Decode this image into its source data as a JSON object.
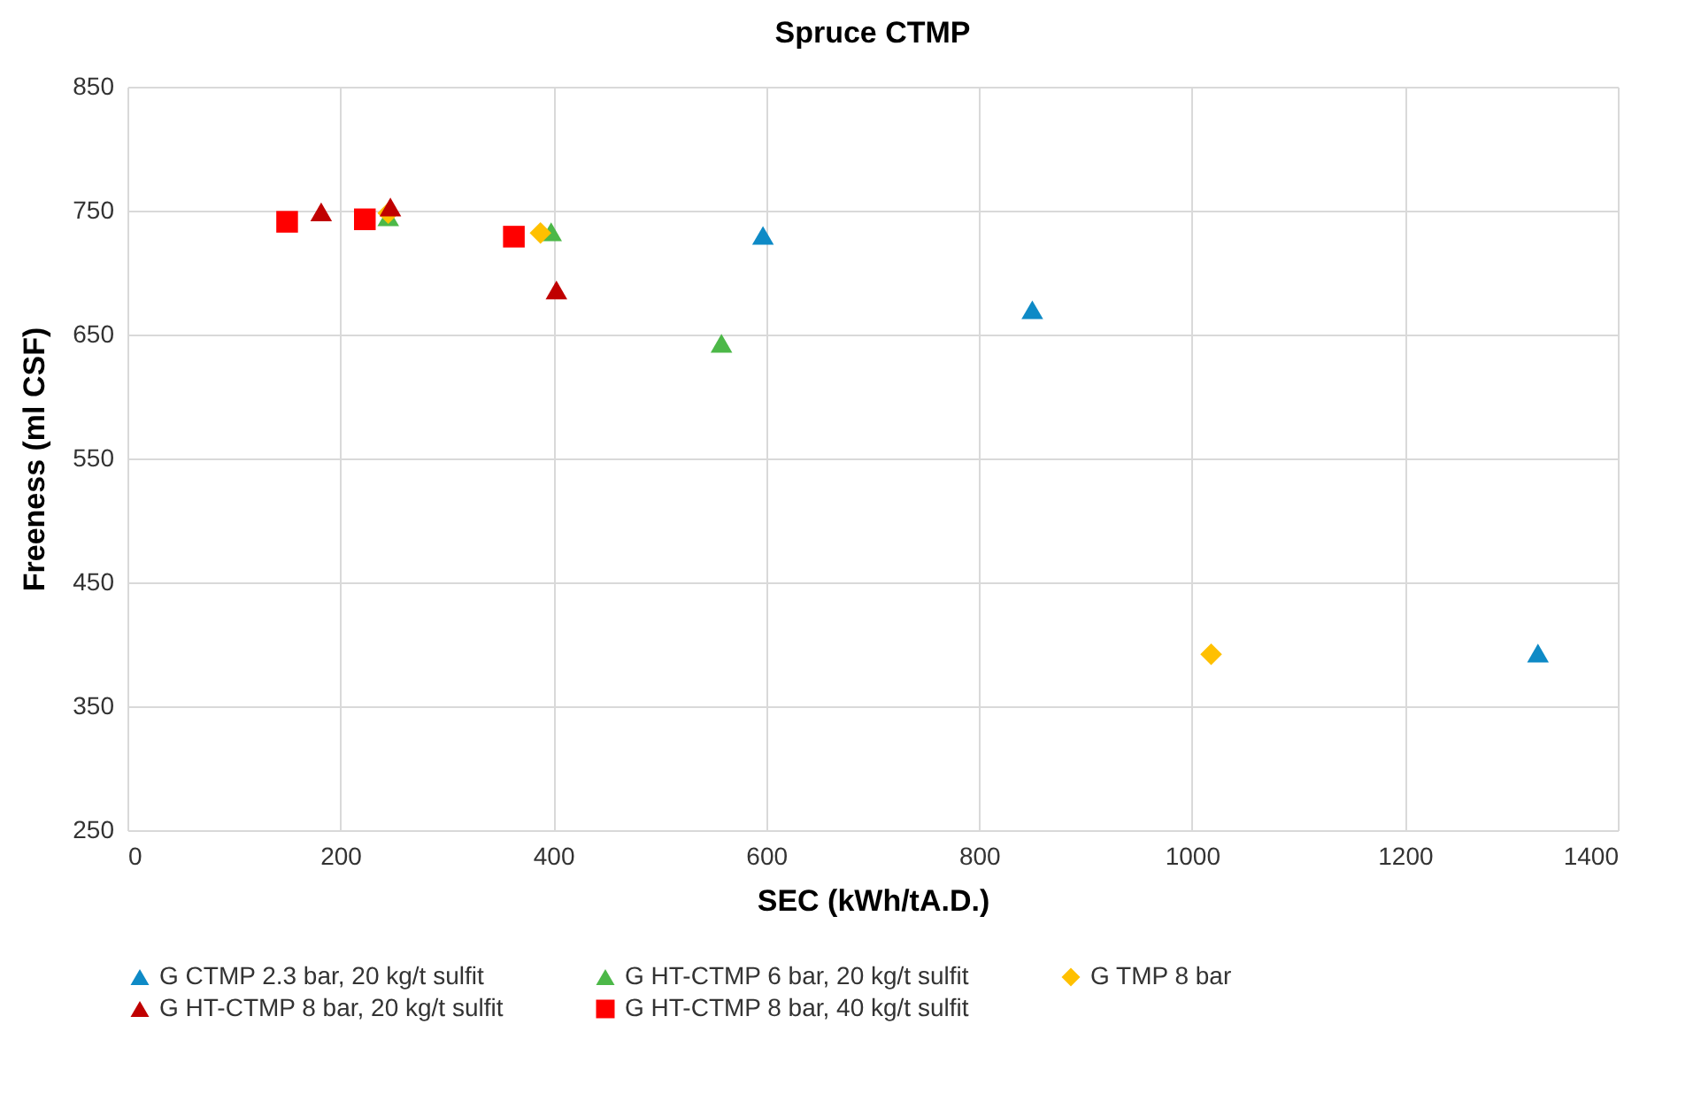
{
  "chart_data": {
    "type": "scatter",
    "title": "Spruce CTMP",
    "xlabel": "SEC (kWh/tA.D.)",
    "ylabel": "Freeness (ml CSF)",
    "xlim": [
      0,
      1400
    ],
    "xticks": [
      0,
      200,
      400,
      600,
      800,
      1000,
      1200,
      1400
    ],
    "ylim": [
      250,
      850
    ],
    "yticks": [
      250,
      350,
      450,
      550,
      650,
      750,
      850
    ],
    "grid": true,
    "legend": "bottom",
    "series": [
      {
        "name": "G CTMP 2.3 bar, 20 kg/t sulfit",
        "color": "#0e8ac6",
        "marker": "triangle",
        "x": [
          597,
          850,
          1325
        ],
        "values": [
          730,
          670,
          393
        ]
      },
      {
        "name": "G HT-CTMP 6 bar, 20 kg/t sulfit",
        "color": "#4cb848",
        "marker": "triangle",
        "x": [
          245,
          398,
          558
        ],
        "values": [
          745,
          733,
          643
        ]
      },
      {
        "name": "G TMP 8 bar",
        "color": "#ffc000",
        "marker": "diamond",
        "x": [
          245,
          388,
          1018
        ],
        "values": [
          748,
          732,
          392
        ]
      },
      {
        "name": "G HT-CTMP 8 bar, 20 kg/t sulfit",
        "color": "#c00000",
        "marker": "triangle",
        "x": [
          182,
          247,
          403
        ],
        "values": [
          749,
          753,
          686
        ]
      },
      {
        "name": "G HT-CTMP 8 bar, 40 kg/t sulfit",
        "color": "#ff0000",
        "marker": "square",
        "x": [
          150,
          223,
          363
        ],
        "values": [
          741,
          743,
          729
        ]
      }
    ]
  }
}
